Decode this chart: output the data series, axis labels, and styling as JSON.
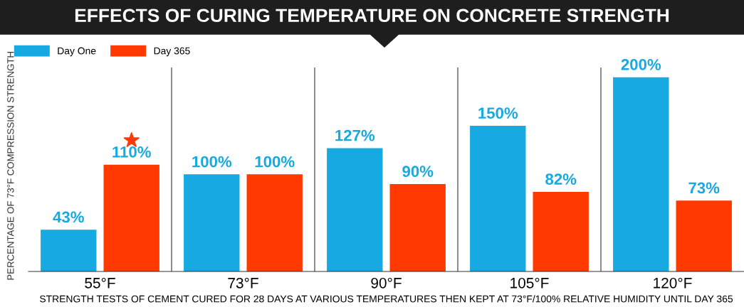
{
  "chart_data": {
    "type": "bar",
    "title": "EFFECTS OF CURING TEMPERATURE ON CONCRETE STRENGTH",
    "ylabel": "PERCENTAGE OF 73°F COMPRESSION STRENGTH",
    "xlabel": "STRENGTH TESTS OF CEMENT CURED FOR 28 DAYS AT VARIOUS TEMPERATURES THEN KEPT AT 73°F/100% RELATIVE HUMIDITY UNTIL DAY 365",
    "categories": [
      "55°F",
      "73°F",
      "90°F",
      "105°F",
      "120°F"
    ],
    "series": [
      {
        "name": "Day One",
        "color": "#17a9e1",
        "values": [
          43,
          100,
          127,
          150,
          200
        ],
        "value_labels": [
          "43%",
          "100%",
          "127%",
          "150%",
          "200%"
        ]
      },
      {
        "name": "Day 365",
        "color": "#ff3a00",
        "values": [
          110,
          100,
          90,
          82,
          73
        ],
        "value_labels": [
          "110%",
          "100%",
          "90%",
          "82%",
          "73%"
        ]
      }
    ],
    "ylim": [
      0,
      210
    ],
    "tick_labels": "x",
    "grid": "x",
    "legend": "top left"
  }
}
